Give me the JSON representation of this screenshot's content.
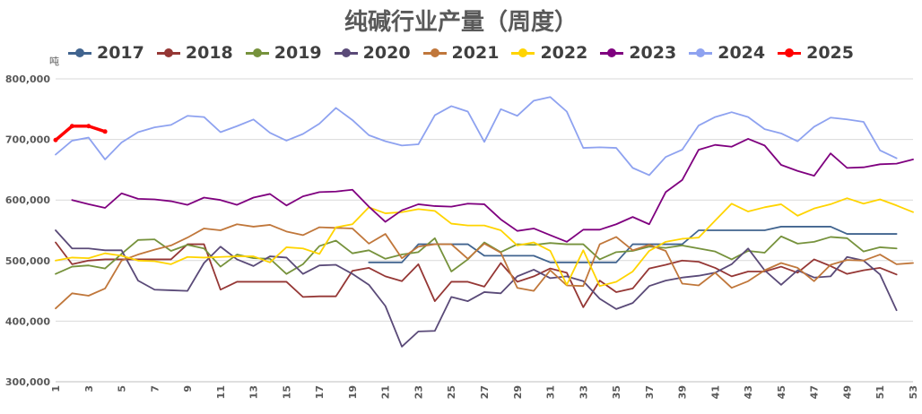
{
  "chart_data": {
    "type": "line",
    "title": "纯碱行业产量（周度）",
    "ylabel": "吨",
    "xlabel": "",
    "ylim": [
      300000,
      800000
    ],
    "xlim": [
      1,
      53
    ],
    "yticks": [
      300000,
      400000,
      500000,
      600000,
      700000,
      800000
    ],
    "ytick_labels": [
      "300,000",
      "400,000",
      "500,000",
      "600,000",
      "700,000",
      "800,000"
    ],
    "xticks": [
      1,
      3,
      5,
      7,
      9,
      11,
      13,
      15,
      17,
      19,
      21,
      23,
      25,
      27,
      29,
      31,
      33,
      35,
      37,
      39,
      41,
      43,
      45,
      47,
      49,
      51,
      53
    ],
    "grid": true,
    "legend_position": "top",
    "series": [
      {
        "name": "2017",
        "color": "#41648f",
        "start_week": 20,
        "values": [
          497000,
          497000,
          497000,
          527000,
          527000,
          527000,
          527000,
          508000,
          508000,
          508000,
          508000,
          497000,
          497000,
          497000,
          497000,
          497000,
          527000,
          527000,
          527000,
          527000,
          550000,
          550000,
          550000,
          550000,
          550000,
          556000,
          556000,
          556000,
          556000,
          544000,
          544000,
          544000,
          544000
        ]
      },
      {
        "name": "2018",
        "color": "#953735",
        "start_week": 1,
        "values": [
          530000,
          494000,
          500000,
          502000,
          502000,
          502000,
          502000,
          502000,
          527000,
          527000,
          452000,
          465000,
          465000,
          465000,
          465000,
          440000,
          441000,
          441000,
          483000,
          488000,
          474000,
          466000,
          494000,
          433000,
          465000,
          465000,
          457000,
          496000,
          465000,
          474000,
          487000,
          480000,
          423000,
          467000,
          448000,
          454000,
          487000,
          493000,
          500000,
          498000,
          488000,
          474000,
          482000,
          482000,
          490000,
          480000,
          502000,
          491000,
          478000,
          484000,
          488000,
          477000
        ]
      },
      {
        "name": "2019",
        "color": "#76923c",
        "start_week": 1,
        "values": [
          478000,
          490000,
          492000,
          487000,
          511000,
          534000,
          535000,
          516000,
          526000,
          520000,
          490000,
          510000,
          504000,
          503000,
          478000,
          494000,
          524000,
          533000,
          512000,
          517000,
          503000,
          510000,
          514000,
          537000,
          482000,
          502000,
          530000,
          514000,
          527000,
          526000,
          529000,
          527000,
          527000,
          502000,
          514000,
          516000,
          523000,
          521000,
          525000,
          520000,
          515000,
          502000,
          516000,
          513000,
          540000,
          528000,
          531000,
          539000,
          537000,
          515000,
          522000,
          520000
        ]
      },
      {
        "name": "2020",
        "color": "#5a4a78",
        "start_week": 1,
        "values": [
          550000,
          520000,
          520000,
          517000,
          517000,
          467000,
          452000,
          451000,
          450000,
          496000,
          523000,
          502000,
          491000,
          507000,
          505000,
          478000,
          492000,
          493000,
          478000,
          460000,
          425000,
          358000,
          383000,
          384000,
          440000,
          433000,
          448000,
          446000,
          474000,
          485000,
          471000,
          474000,
          466000,
          437000,
          420000,
          430000,
          458000,
          467000,
          472000,
          475000,
          480000,
          494000,
          520000,
          484000,
          460000,
          484000,
          472000,
          474000,
          506000,
          500000,
          477000,
          418000
        ]
      },
      {
        "name": "2021",
        "color": "#c0773b",
        "start_week": 1,
        "values": [
          421000,
          446000,
          442000,
          454000,
          500000,
          510000,
          518000,
          525000,
          538000,
          553000,
          550000,
          560000,
          556000,
          559000,
          548000,
          542000,
          555000,
          554000,
          553000,
          528000,
          544000,
          504000,
          523000,
          527000,
          527000,
          503000,
          528000,
          513000,
          455000,
          450000,
          484000,
          459000,
          458000,
          527000,
          539000,
          517000,
          526000,
          516000,
          462000,
          459000,
          480000,
          455000,
          466000,
          484000,
          496000,
          488000,
          466000,
          493000,
          501000,
          500000,
          510000,
          494000,
          496000
        ]
      },
      {
        "name": "2022",
        "color": "#ffd400",
        "start_week": 1,
        "values": [
          500000,
          505000,
          504000,
          512000,
          508000,
          500000,
          499000,
          494000,
          506000,
          505000,
          506000,
          507000,
          507000,
          497000,
          522000,
          520000,
          511000,
          555000,
          560000,
          588000,
          578000,
          580000,
          585000,
          582000,
          561000,
          558000,
          558000,
          550000,
          525000,
          530000,
          516000,
          460000,
          517000,
          458000,
          465000,
          482000,
          516000,
          531000,
          536000,
          538000,
          566000,
          594000,
          581000,
          588000,
          593000,
          574000,
          586000,
          593000,
          603000,
          594000,
          601000,
          591000,
          580000
        ]
      },
      {
        "name": "2023",
        "color": "#7f007f",
        "start_week": 2,
        "values": [
          600000,
          593000,
          587000,
          611000,
          602000,
          601000,
          598000,
          592000,
          604000,
          600000,
          592000,
          604000,
          610000,
          591000,
          606000,
          613000,
          614000,
          617000,
          589000,
          564000,
          583000,
          593000,
          590000,
          589000,
          594000,
          593000,
          568000,
          549000,
          553000,
          542000,
          531000,
          551000,
          551000,
          560000,
          572000,
          560000,
          613000,
          633000,
          683000,
          691000,
          688000,
          701000,
          690000,
          658000,
          648000,
          640000,
          677000,
          653000,
          654000,
          659000,
          660000,
          667000
        ]
      },
      {
        "name": "2024",
        "color": "#8ea2f0",
        "start_week": 1,
        "values": [
          675000,
          698000,
          703000,
          667000,
          695000,
          712000,
          720000,
          724000,
          739000,
          737000,
          712000,
          722000,
          733000,
          711000,
          698000,
          709000,
          726000,
          752000,
          732000,
          707000,
          697000,
          690000,
          692000,
          740000,
          755000,
          746000,
          696000,
          750000,
          739000,
          764000,
          770000,
          746000,
          686000,
          687000,
          686000,
          653000,
          641000,
          671000,
          683000,
          723000,
          737000,
          745000,
          737000,
          717000,
          710000,
          697000,
          721000,
          736000,
          733000,
          729000,
          682000,
          669000
        ]
      },
      {
        "name": "2025",
        "color": "#ff0000",
        "start_week": 1,
        "values": [
          699000,
          722000,
          722000,
          713000
        ]
      }
    ]
  }
}
